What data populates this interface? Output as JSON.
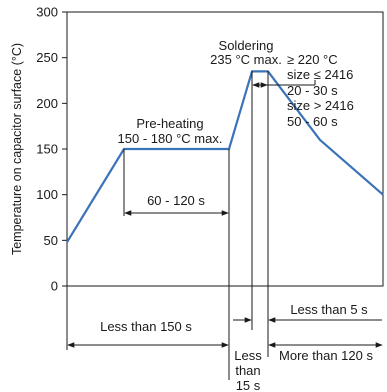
{
  "chart_data": {
    "type": "line",
    "title": "",
    "xlabel": "",
    "ylabel": "Temperature on capacitor surface (°C)",
    "ylim": [
      0,
      300
    ],
    "y_ticks": [
      "0",
      "50",
      "100",
      "150",
      "200",
      "250",
      "300"
    ],
    "grid": false,
    "series": [
      {
        "values": [
          48,
          150,
          150,
          235,
          235,
          160,
          100
        ]
      }
    ],
    "annotations": {
      "preheat_title": "Pre-heating",
      "preheat_range": "150 - 180 °C max.",
      "solder_title": "Soldering",
      "solder_max": "235 °C max.",
      "dwell_1": "≥ 220 °C",
      "dwell_2": "size ≤ 2416",
      "dwell_3": "20 - 30 s",
      "dwell_4": "size > 2416",
      "dwell_5": "50 - 60 s",
      "preheat_time": "60 - 120 s",
      "less_150": "Less than 150 s",
      "less_5": "Less than 5 s",
      "less_15_a": "Less",
      "less_15_b": "than",
      "less_15_c": "15 s",
      "more_120": "More than 120 s"
    }
  }
}
